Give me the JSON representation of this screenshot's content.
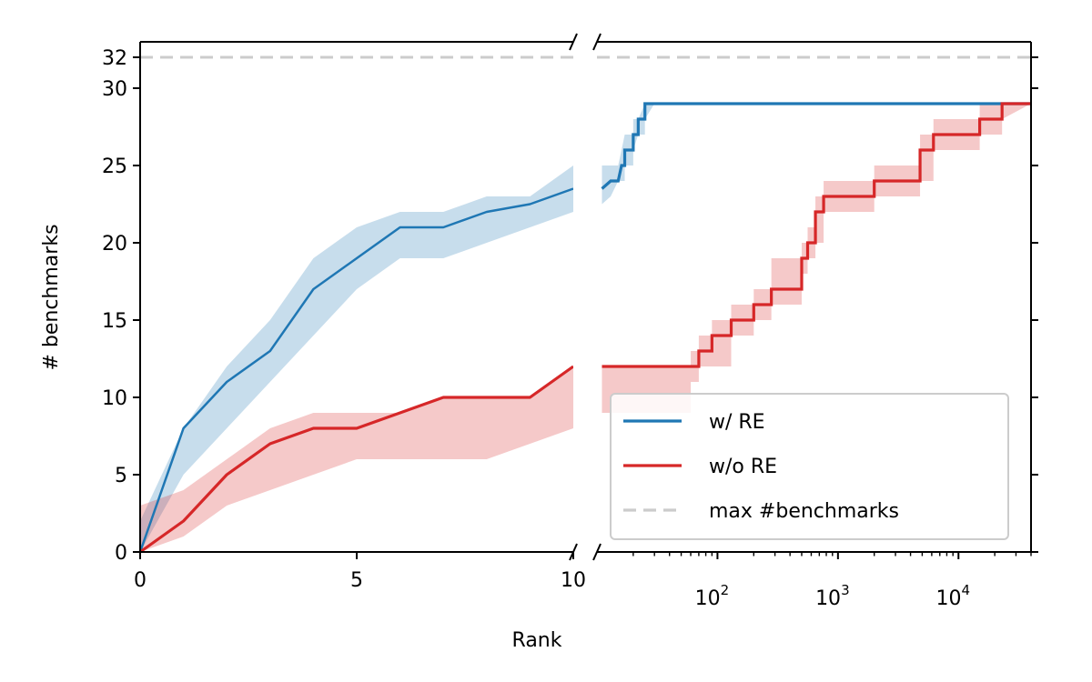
{
  "chart_data": {
    "type": "line",
    "xlabel": "Rank",
    "ylabel": "# benchmarks",
    "x_axis": {
      "scale": "broken: linear 0-10, then log",
      "linear_range": [
        0,
        10
      ],
      "log_range": [
        10,
        40000
      ],
      "linear_ticks": [
        {
          "value": 0,
          "label": "0"
        },
        {
          "value": 5,
          "label": "5"
        },
        {
          "value": 10,
          "label": "10"
        }
      ],
      "log_ticks": [
        {
          "value": 100,
          "base": "10",
          "exp": "2"
        },
        {
          "value": 1000,
          "base": "10",
          "exp": "3"
        },
        {
          "value": 10000,
          "base": "10",
          "exp": "4"
        }
      ]
    },
    "y_axis": {
      "range": [
        0,
        33
      ],
      "ticks": [
        {
          "value": 0,
          "label": "0"
        },
        {
          "value": 5,
          "label": "5"
        },
        {
          "value": 10,
          "label": "10"
        },
        {
          "value": 15,
          "label": "15"
        },
        {
          "value": 20,
          "label": "20"
        },
        {
          "value": 25,
          "label": "25"
        },
        {
          "value": 30,
          "label": "30"
        },
        {
          "value": 32,
          "label": "32"
        }
      ]
    },
    "legend": {
      "position": "lower-right",
      "entries": [
        {
          "label": "w/ RE",
          "color": "#1f77b4",
          "style": "solid"
        },
        {
          "label": "w/o RE",
          "color": "#d62728",
          "style": "solid"
        },
        {
          "label": "max #benchmarks",
          "color": "#cccccc",
          "style": "dashed"
        }
      ]
    },
    "reference_line": {
      "name": "max #benchmarks",
      "value": 32,
      "color": "#cccccc"
    },
    "series": [
      {
        "name": "w/ RE",
        "color": "#1f77b4",
        "linear": {
          "x": [
            0,
            1,
            2,
            3,
            4,
            5,
            6,
            7,
            8,
            9,
            10
          ],
          "y": [
            0,
            8,
            11,
            13,
            17,
            19,
            21,
            21,
            22,
            22.5,
            23.5
          ],
          "lower": [
            0,
            5,
            8,
            11,
            14,
            17,
            19,
            19,
            20,
            21,
            22
          ],
          "upper": [
            2,
            8,
            12,
            15,
            19,
            21,
            22,
            22,
            23,
            23,
            25
          ]
        },
        "log": {
          "x": [
            11,
            13,
            15,
            16,
            17,
            17,
            20,
            20,
            22,
            22,
            25,
            25,
            30,
            30,
            40000
          ],
          "y": [
            23.5,
            24,
            24,
            25,
            25,
            26,
            26,
            27,
            27,
            28,
            28,
            29,
            29,
            29,
            29
          ],
          "lower": [
            22.5,
            23,
            24,
            24,
            24,
            25,
            25,
            26,
            27,
            27,
            27,
            28,
            29,
            29,
            29
          ],
          "upper": [
            25,
            25,
            25,
            26,
            27,
            27,
            27,
            28,
            28,
            28,
            29,
            29,
            29,
            29,
            29
          ]
        }
      },
      {
        "name": "w/o RE",
        "color": "#d62728",
        "linear": {
          "x": [
            0,
            1,
            2,
            3,
            4,
            5,
            6,
            7,
            8,
            9,
            10
          ],
          "y": [
            0,
            2,
            5,
            7,
            8,
            8,
            9,
            10,
            10,
            10,
            12
          ],
          "lower": [
            0,
            1,
            3,
            4,
            5,
            6,
            6,
            6,
            6,
            7,
            8
          ],
          "upper": [
            3,
            4,
            6,
            8,
            9,
            9,
            9,
            10,
            10,
            10,
            12
          ]
        },
        "log": {
          "x": [
            11,
            60,
            60,
            70,
            70,
            90,
            90,
            130,
            130,
            200,
            200,
            280,
            280,
            500,
            500,
            560,
            560,
            650,
            650,
            760,
            760,
            2000,
            2000,
            4800,
            4800,
            6200,
            6200,
            15000,
            15000,
            23000,
            23000,
            40000
          ],
          "y": [
            12,
            12,
            12,
            12,
            13,
            13,
            14,
            14,
            15,
            15,
            16,
            16,
            17,
            17,
            19,
            19,
            20,
            20,
            22,
            22,
            23,
            23,
            24,
            24,
            26,
            26,
            27,
            27,
            28,
            28,
            29,
            29
          ],
          "lower": [
            9,
            9,
            11,
            11,
            12,
            12,
            12,
            12,
            14,
            14,
            15,
            15,
            16,
            16,
            18,
            18,
            19,
            19,
            20,
            20,
            22,
            22,
            23,
            23,
            24,
            24,
            26,
            26,
            27,
            27,
            28,
            29
          ],
          "upper": [
            12,
            12,
            13,
            13,
            14,
            14,
            15,
            15,
            16,
            16,
            17,
            17,
            19,
            19,
            20,
            20,
            21,
            21,
            23,
            23,
            24,
            24,
            25,
            25,
            27,
            27,
            28,
            28,
            29,
            29,
            29,
            29
          ]
        }
      }
    ]
  }
}
